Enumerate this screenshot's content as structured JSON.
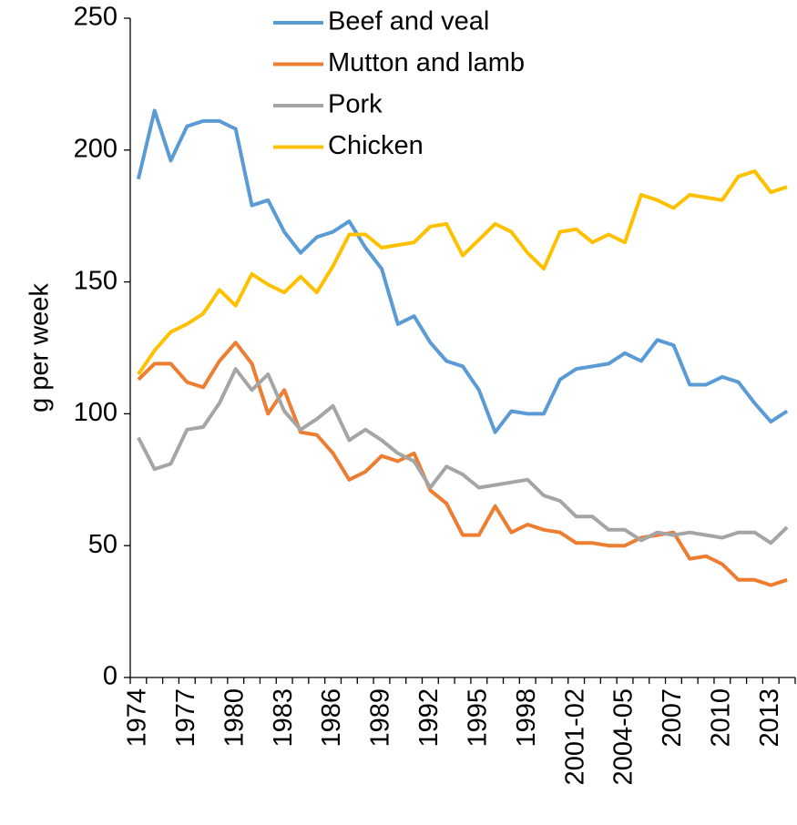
{
  "chart_data": {
    "type": "line",
    "y_label": "g per week",
    "categories": [
      "1974",
      null,
      null,
      "1977",
      null,
      null,
      "1980",
      null,
      null,
      "1983",
      null,
      null,
      "1986",
      null,
      null,
      "1989",
      null,
      null,
      "1992",
      null,
      null,
      "1995",
      null,
      null,
      "1998",
      null,
      null,
      "2001-02",
      null,
      null,
      "2004-05",
      null,
      null,
      "2007",
      null,
      null,
      "2010",
      null,
      null,
      "2013",
      null
    ],
    "series": [
      {
        "name": "Beef and veal",
        "color": "#5b9bd5",
        "values": [
          189,
          215,
          196,
          209,
          211,
          211,
          208,
          179,
          181,
          169,
          161,
          167,
          169,
          173,
          163,
          155,
          134,
          137,
          127,
          120,
          118,
          109,
          93,
          101,
          100,
          100,
          113,
          117,
          118,
          119,
          123,
          120,
          128,
          126,
          111,
          111,
          114,
          112,
          104,
          97,
          101
        ]
      },
      {
        "name": "Mutton and lamb",
        "color": "#ed7d31",
        "values": [
          113,
          119,
          119,
          112,
          110,
          120,
          127,
          119,
          100,
          109,
          93,
          92,
          85,
          75,
          78,
          84,
          82,
          85,
          71,
          66,
          54,
          54,
          65,
          55,
          58,
          56,
          55,
          51,
          51,
          50,
          50,
          53,
          54,
          55,
          45,
          46,
          43,
          37,
          37,
          35,
          37
        ]
      },
      {
        "name": "Pork",
        "color": "#a5a5a5",
        "values": [
          91,
          79,
          81,
          94,
          95,
          104,
          117,
          109,
          115,
          101,
          94,
          98,
          103,
          90,
          94,
          90,
          85,
          82,
          72,
          80,
          77,
          72,
          73,
          74,
          75,
          69,
          67,
          61,
          61,
          56,
          56,
          52,
          55,
          54,
          55,
          54,
          53,
          55,
          55,
          51,
          57
        ]
      },
      {
        "name": "Chicken",
        "color": "#ffc000",
        "values": [
          115,
          124,
          131,
          134,
          138,
          147,
          141,
          153,
          149,
          146,
          152,
          146,
          156,
          168,
          168,
          163,
          164,
          165,
          171,
          172,
          160,
          166,
          172,
          169,
          161,
          155,
          169,
          170,
          165,
          168,
          165,
          183,
          181,
          178,
          183,
          182,
          181,
          190,
          192,
          184,
          186
        ]
      }
    ],
    "ylim": [
      0,
      250
    ],
    "yticks": [
      0,
      50,
      100,
      150,
      200,
      250
    ],
    "grid": false,
    "legend": "top"
  }
}
